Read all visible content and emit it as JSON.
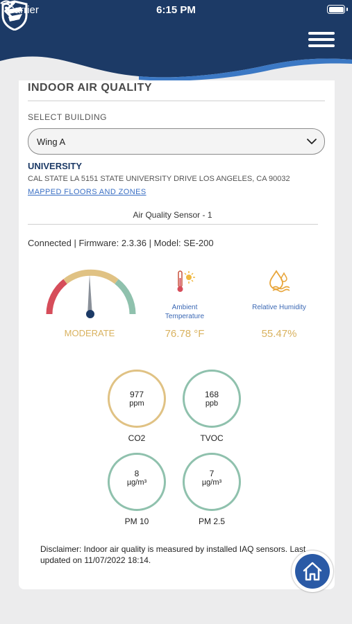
{
  "status_bar": {
    "carrier": "Carrier",
    "time": "6:15 PM"
  },
  "page": {
    "title": "INDOOR AIR QUALITY"
  },
  "select_building": {
    "label": "SELECT BUILDING",
    "value": "Wing A"
  },
  "location": {
    "name": "UNIVERSITY",
    "address": "CAL STATE LA 5151 STATE UNIVERSITY DRIVE LOS ANGELES, CA 90032",
    "link": "MAPPED FLOORS AND ZONES"
  },
  "sensor": {
    "name": "Air Quality Sensor - 1",
    "connection": "Connected | Firmware: 2.3.36 | Model: SE-200"
  },
  "overall": {
    "status": "MODERATE"
  },
  "ambient": {
    "label": "Ambient Temperature",
    "value": "76.78 °F"
  },
  "humidity": {
    "label": "Relative Humidity",
    "value": "55.47%"
  },
  "metrics": [
    {
      "name": "CO2",
      "value": "977",
      "unit": "ppm"
    },
    {
      "name": "TVOC",
      "value": "168",
      "unit": "ppb"
    },
    {
      "name": "PM 10",
      "value": "8",
      "unit": "µg/m³"
    },
    {
      "name": "PM 2.5",
      "value": "7",
      "unit": "µg/m³"
    }
  ],
  "disclaimer": "Disclaimer: Indoor air quality is measured by installed IAQ sensors. Last updated on 11/07/2022 18:14.",
  "colors": {
    "navy": "#1c3a66",
    "accent": "#d9b25f",
    "good": "#8fc1ad",
    "bad": "#d64d5a"
  }
}
